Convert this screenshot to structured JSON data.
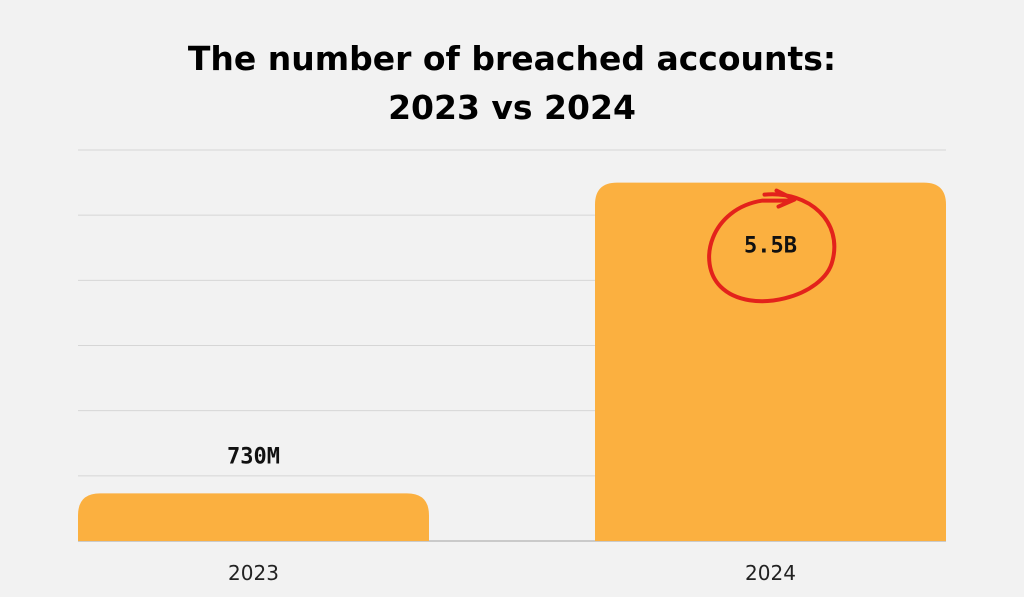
{
  "chart_data": {
    "type": "bar",
    "title": "The number of breached accounts:",
    "subtitle": "2023 vs 2024",
    "categories": [
      "2023",
      "2024"
    ],
    "values": [
      0.73,
      5.5
    ],
    "value_labels": [
      "730M",
      "5.5B"
    ],
    "value_unit": "billion accounts",
    "ylim": [
      0,
      6.0
    ],
    "grid": true,
    "legend": "none",
    "highlighted_label": "5.5B",
    "colors": {
      "bar": "#fbb040",
      "grid": "#d6d6d6",
      "axis": "#bdbdbd",
      "highlight_circle": "#e3221b",
      "text": "#111111"
    }
  }
}
